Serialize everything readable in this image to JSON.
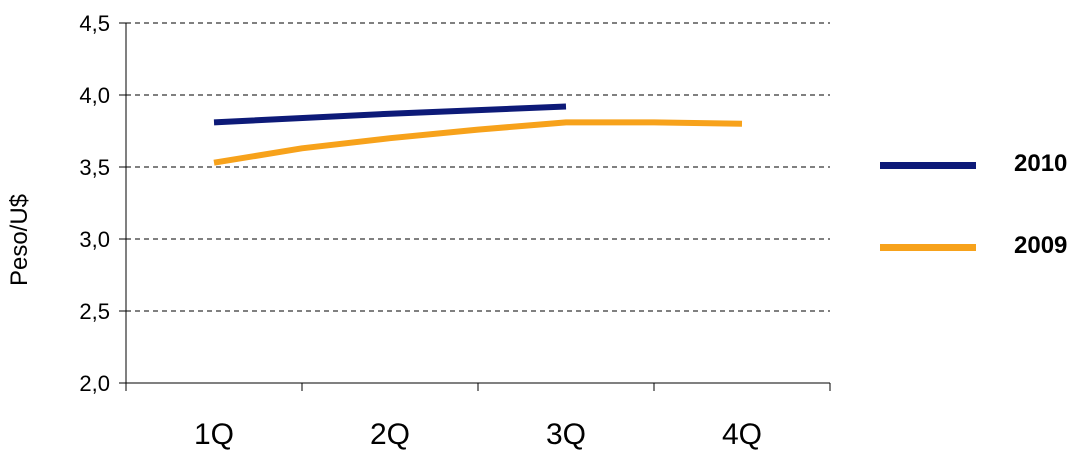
{
  "chart_data": {
    "type": "line",
    "categories": [
      "1Q",
      "2Q",
      "3Q",
      "4Q"
    ],
    "ylabel": "Peso/U$",
    "xlabel": "",
    "ylim": [
      2.0,
      4.5
    ],
    "yticks": [
      "2,0",
      "2,5",
      "3,0",
      "3,5",
      "4,0",
      "4,5"
    ],
    "ytick_values": [
      2.0,
      2.5,
      3.0,
      3.5,
      4.0,
      4.5
    ],
    "grid": true,
    "legend_position": "right",
    "series": [
      {
        "name": "2010",
        "color": "#0d1a78",
        "points": [
          {
            "x": "1Q",
            "y": 3.81
          },
          {
            "x": "2Q",
            "y": 3.87
          },
          {
            "x": "3Q",
            "y": 3.92
          }
        ]
      },
      {
        "name": "2009",
        "color": "#f7a21b",
        "points": [
          {
            "x": "1Q",
            "y": 3.53
          },
          {
            "x": "1.5Q",
            "y": 3.63
          },
          {
            "x": "2Q",
            "y": 3.7
          },
          {
            "x": "2.5Q",
            "y": 3.76
          },
          {
            "x": "3Q",
            "y": 3.81
          },
          {
            "x": "3.5Q",
            "y": 3.81
          },
          {
            "x": "4Q",
            "y": 3.8
          }
        ]
      }
    ]
  }
}
